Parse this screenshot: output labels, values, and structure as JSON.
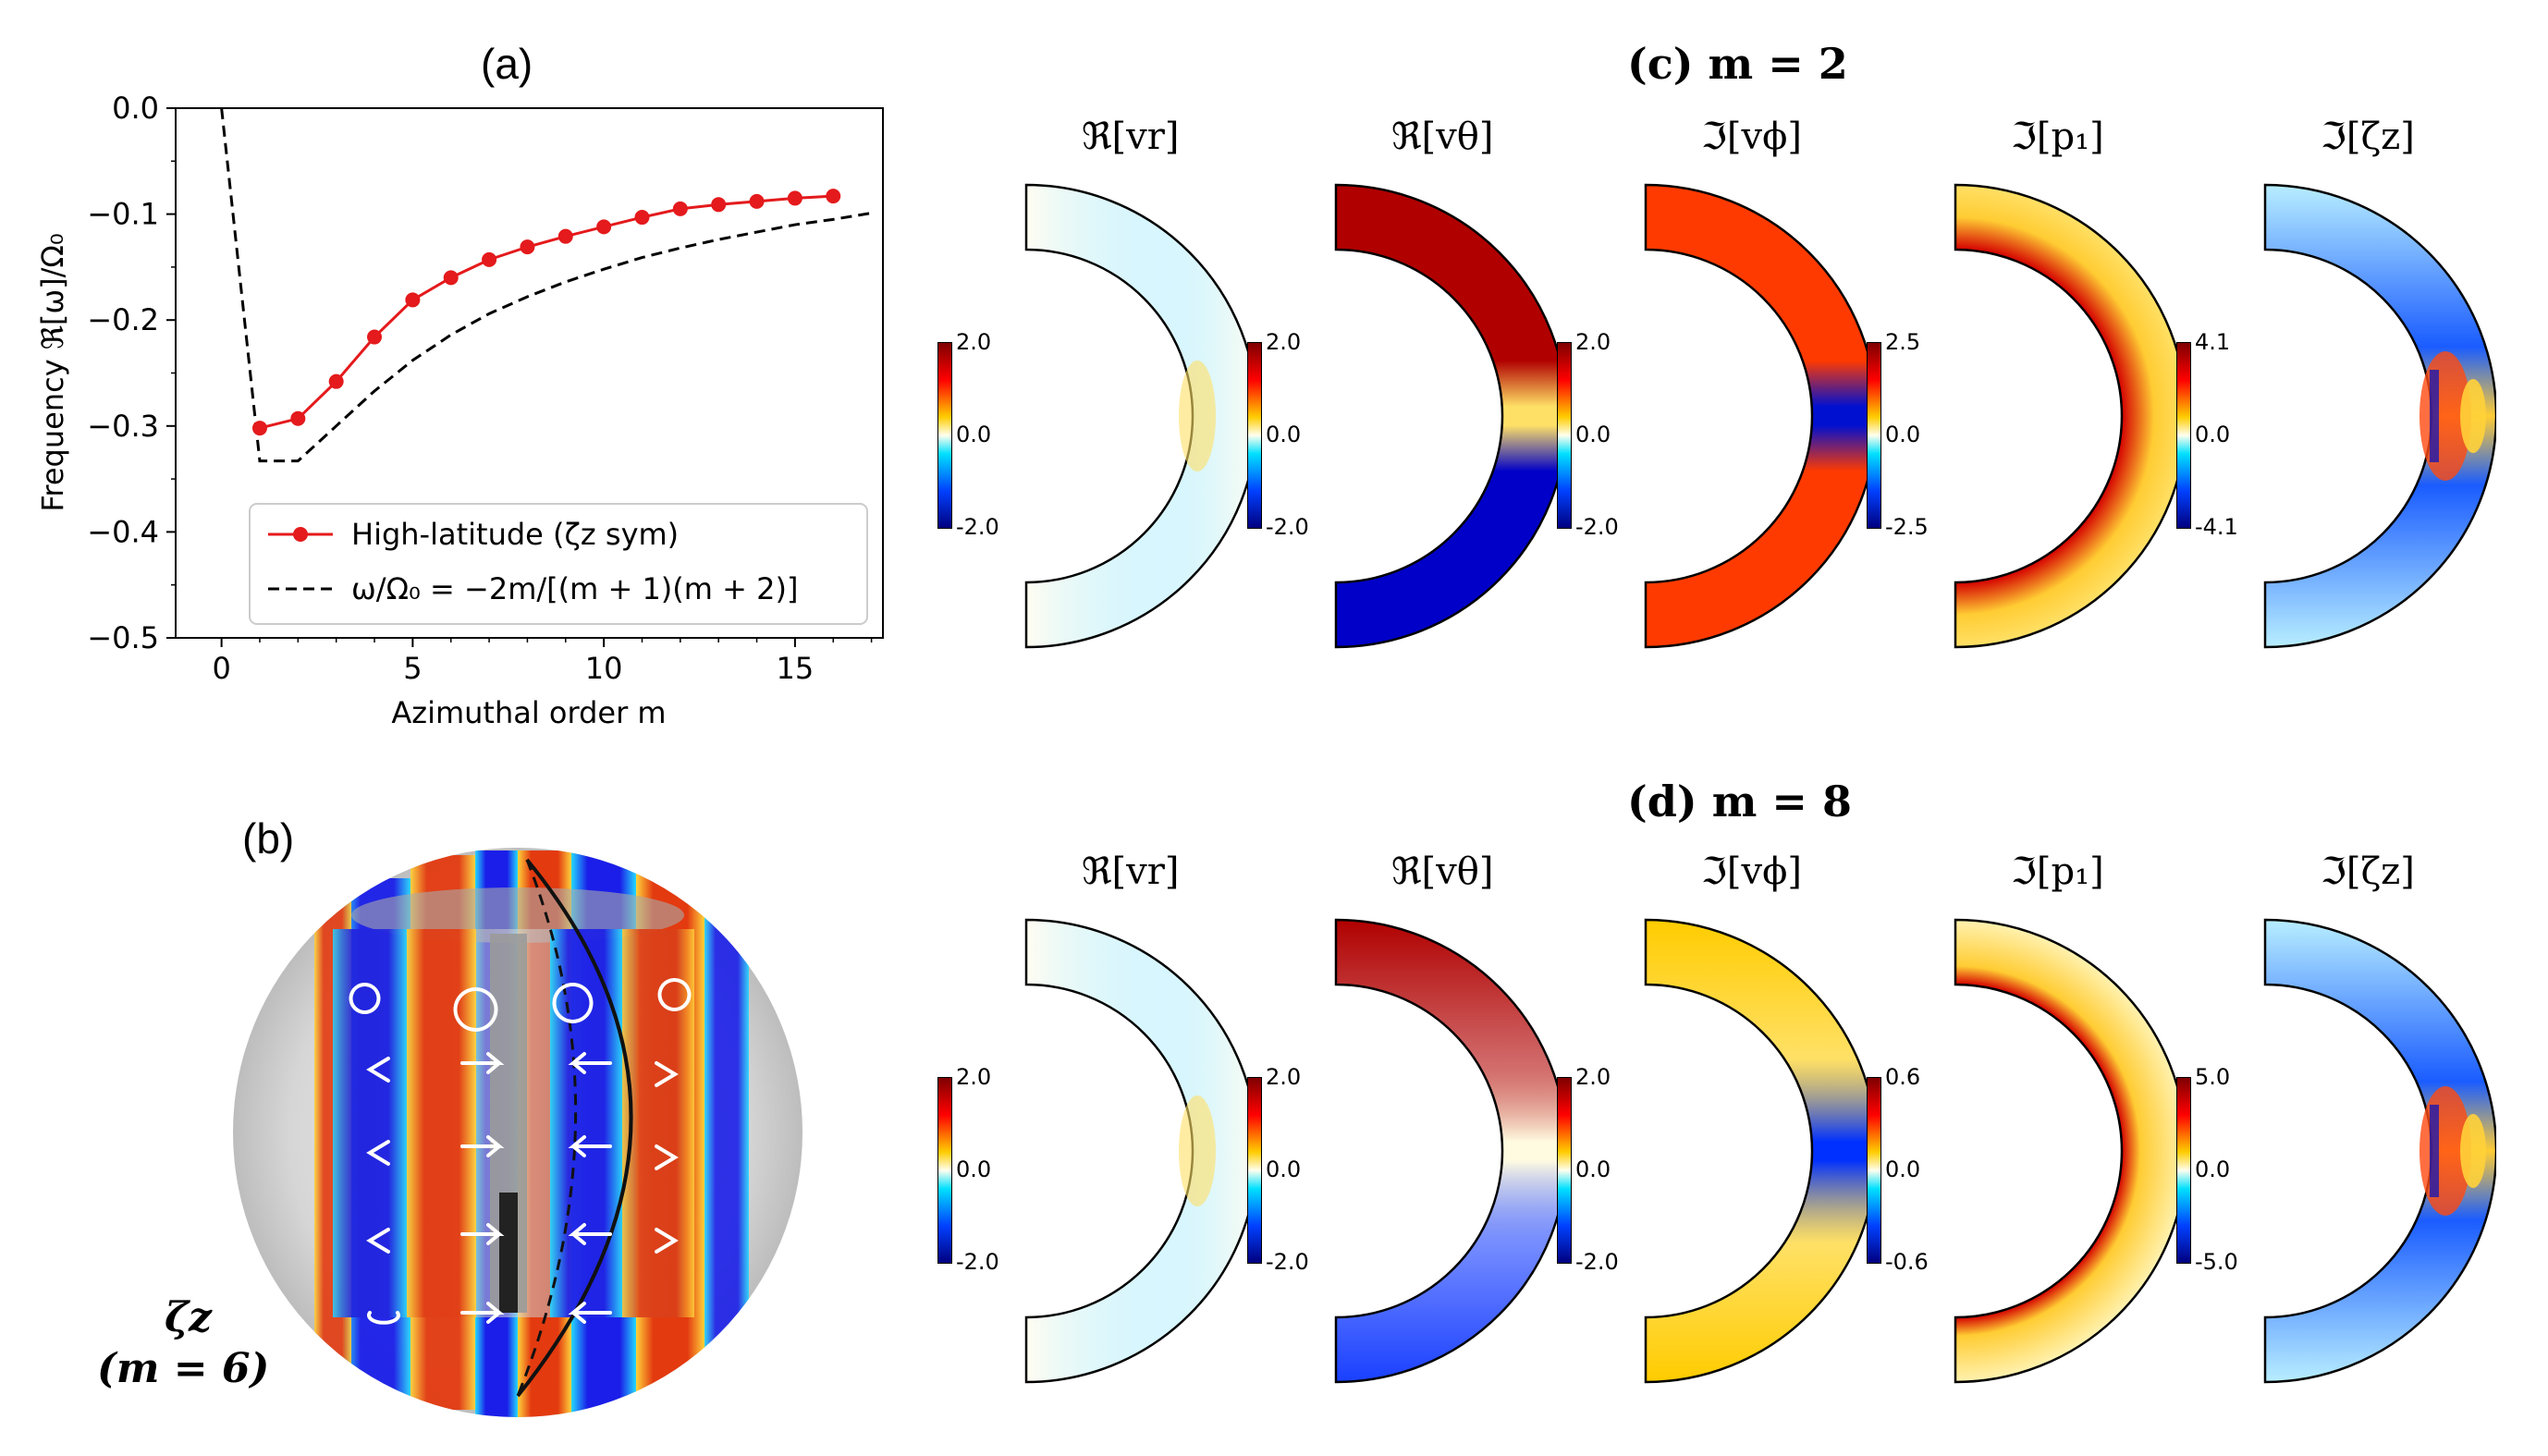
{
  "panel_a": {
    "label": "(a)",
    "ylabel": "Frequency ℜ[ω]/Ω₀",
    "xlabel": "Azimuthal order m",
    "legend": {
      "series1": "High-latitude (ζz sym)",
      "series2": "ω/Ω₀ = −2m/[(m + 1)(m + 2)]"
    }
  },
  "chart_data": {
    "type": "line",
    "title": "(a)",
    "xlabel": "Azimuthal order m",
    "ylabel": "Frequency ℜ[ω]/Ω₀",
    "xlim": [
      -1.2,
      17.3
    ],
    "ylim": [
      -0.5,
      0.0
    ],
    "xticks": [
      "0",
      "5",
      "10",
      "15"
    ],
    "yticks": [
      "0.0",
      "−0.1",
      "−0.2",
      "−0.3",
      "−0.4",
      "−0.5"
    ],
    "grid": false,
    "legend_position": "lower-right",
    "series": [
      {
        "name": "High-latitude (ζz sym)",
        "style": "solid-markers",
        "color": "#e41a1c",
        "x": [
          1,
          2,
          3,
          4,
          5,
          6,
          7,
          8,
          9,
          10,
          11,
          12,
          13,
          14,
          15,
          16
        ],
        "y": [
          -0.302,
          -0.293,
          -0.258,
          -0.216,
          -0.181,
          -0.16,
          -0.143,
          -0.131,
          -0.121,
          -0.112,
          -0.103,
          -0.095,
          -0.091,
          -0.088,
          -0.085,
          -0.083
        ]
      },
      {
        "name": "ω/Ω₀ = −2m/[(m + 1)(m + 2)]",
        "style": "dashed",
        "color": "#000000",
        "x": [
          0,
          1,
          2,
          3,
          4,
          5,
          6,
          7,
          8,
          9,
          10,
          11,
          12,
          13,
          14,
          15,
          16,
          17
        ],
        "y": [
          0,
          -0.333,
          -0.333,
          -0.3,
          -0.267,
          -0.238,
          -0.214,
          -0.194,
          -0.178,
          -0.164,
          -0.152,
          -0.141,
          -0.132,
          -0.124,
          -0.117,
          -0.11,
          -0.105,
          -0.099
        ]
      }
    ]
  },
  "panel_b": {
    "label": "(b)",
    "symbol": "ζz",
    "mode": "(m = 6)"
  },
  "panel_c": {
    "label": "(c) m = 2",
    "titles": [
      "ℜ[vr]",
      "ℜ[vθ]",
      "ℑ[vϕ]",
      "ℑ[p₁]",
      "ℑ[ζz]"
    ],
    "cb_max": [
      "2.0",
      "2.0",
      "2.0",
      "2.5",
      "4.1"
    ],
    "cb_mid": [
      "0.0",
      "0.0",
      "0.0",
      "0.0",
      "0.0"
    ],
    "cb_min": [
      "-2.0",
      "-2.0",
      "-2.0",
      "-2.5",
      "-4.1"
    ]
  },
  "panel_d": {
    "label": "(d) m = 8",
    "titles": [
      "ℜ[vr]",
      "ℜ[vθ]",
      "ℑ[vϕ]",
      "ℑ[p₁]",
      "ℑ[ζz]"
    ],
    "cb_max": [
      "2.0",
      "2.0",
      "2.0",
      "0.6",
      "5.0"
    ],
    "cb_mid": [
      "0.0",
      "0.0",
      "0.0",
      "0.0",
      "0.0"
    ],
    "cb_min": [
      "-2.0",
      "-2.0",
      "-2.0",
      "-0.6",
      "-5.0"
    ]
  },
  "colors": {
    "jet_dark_red": "#7f0000",
    "jet_red": "#ff0000",
    "jet_yellow": "#ffff66",
    "jet_cyan": "#00ffff",
    "jet_blue": "#0000ff",
    "jet_dark_blue": "#00007f",
    "marker_red": "#e41a1c"
  }
}
